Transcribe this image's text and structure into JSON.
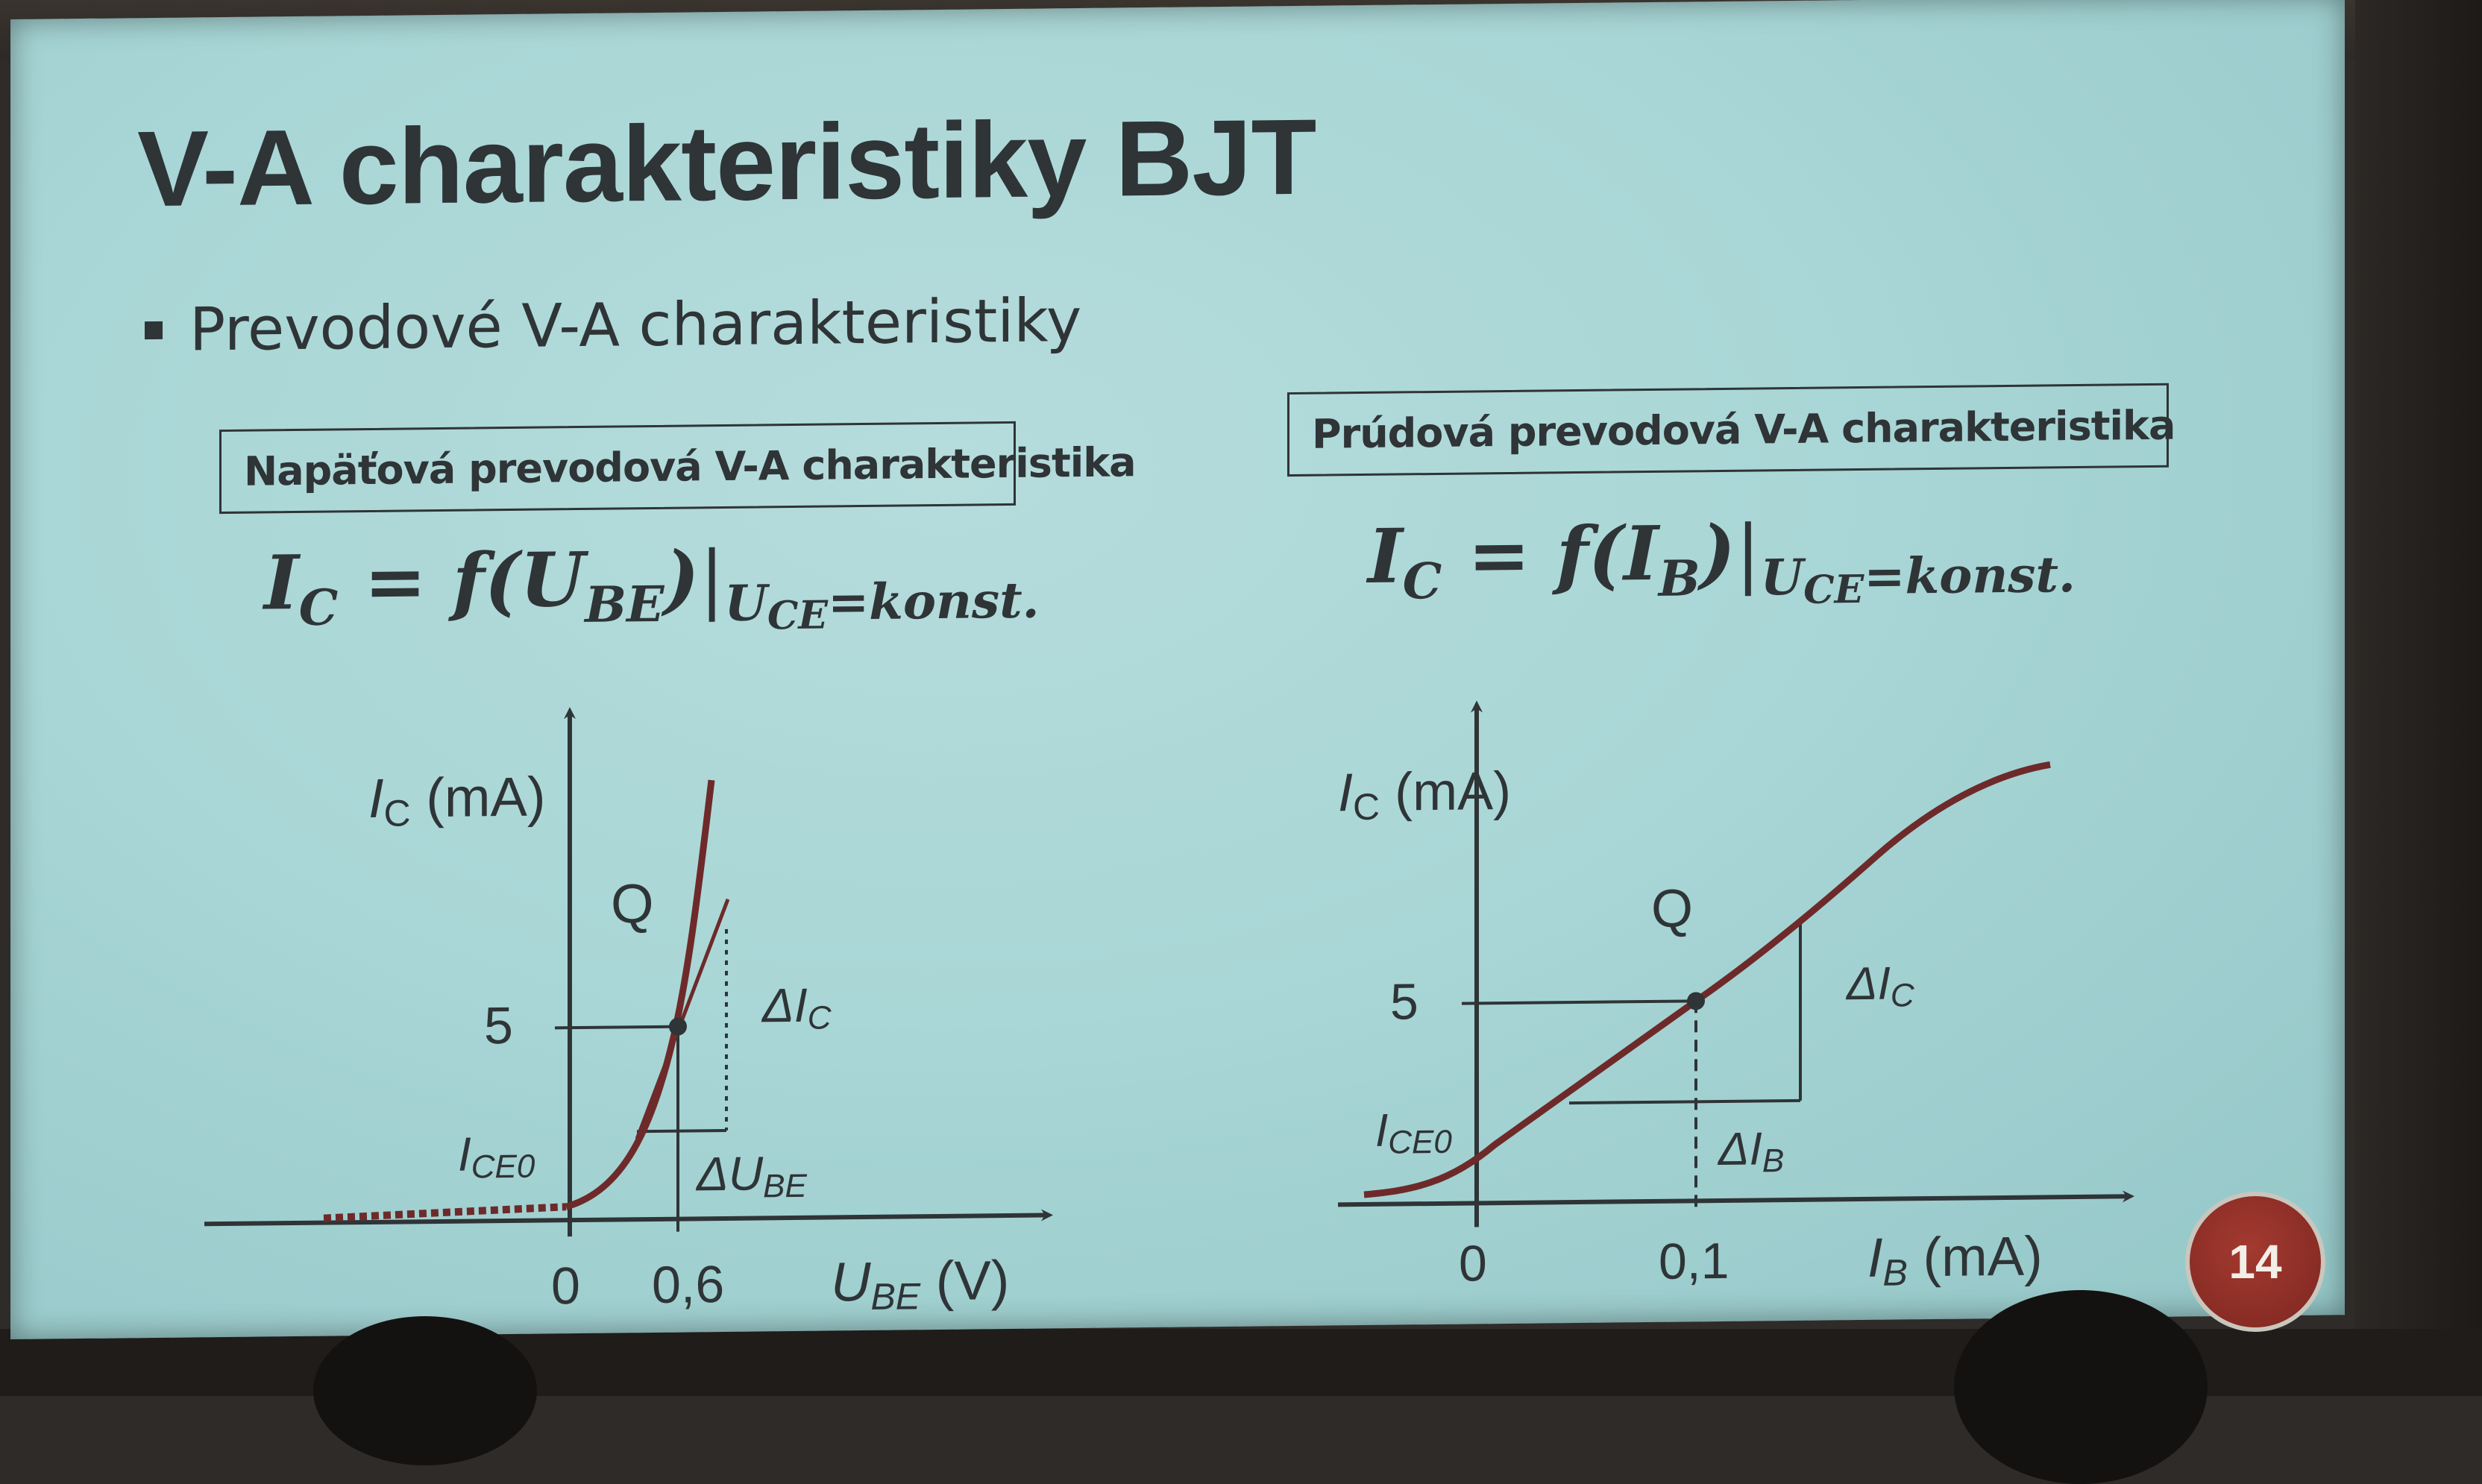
{
  "slide": {
    "title": "V-A charakteristiky BJT",
    "bullet": "Prevodové V-A charakteristiky",
    "page_number": "14"
  },
  "left": {
    "box_label": "Napäťová prevodová V-A charakteristika",
    "formula": {
      "lhs": "I",
      "lhs_sub": "C",
      "eq_fn": " = f(U",
      "arg_sub": "BE",
      "close": ")",
      "bar": "|",
      "cond": "U",
      "cond_sub": "CE",
      "cond_val": "=konst."
    },
    "y_axis_label": "I",
    "y_axis_label_sub": "C",
    "y_axis_unit": " (mA)",
    "x_axis_label": "U",
    "x_axis_label_sub": "BE",
    "x_axis_unit": " (V)",
    "tick_y_5": "5",
    "tick_y_iceo": "I",
    "tick_y_iceo_sub": "CE0",
    "tick_x_0": "0",
    "tick_x_06": "0,6",
    "point_label": "Q",
    "delta_ic": "ΔI",
    "delta_ic_sub": "C",
    "delta_ube": "ΔU",
    "delta_ube_sub": "BE"
  },
  "right": {
    "box_label": "Prúdová prevodová V-A charakteristika",
    "formula": {
      "lhs": "I",
      "lhs_sub": "C",
      "eq_fn": " = f(I",
      "arg_sub": "B",
      "close": ")",
      "bar": "|",
      "cond": "U",
      "cond_sub": "CE",
      "cond_val": "=konst."
    },
    "y_axis_label": "I",
    "y_axis_label_sub": "C",
    "y_axis_unit": " (mA)",
    "x_axis_label": "I",
    "x_axis_label_sub": "B",
    "x_axis_unit": " (mA)",
    "tick_y_5": "5",
    "tick_y_iceo": "I",
    "tick_y_iceo_sub": "CE0",
    "tick_x_0": "0",
    "tick_x_01": "0,1",
    "point_label": "Q",
    "delta_ic": "ΔI",
    "delta_ic_sub": "C",
    "delta_ib": "ΔI",
    "delta_ib_sub": "B"
  },
  "colors": {
    "slide_bg": "#a9d6d6",
    "text": "#2f3437",
    "curve": "#6e2a2a",
    "badge": "#8f2f27"
  }
}
